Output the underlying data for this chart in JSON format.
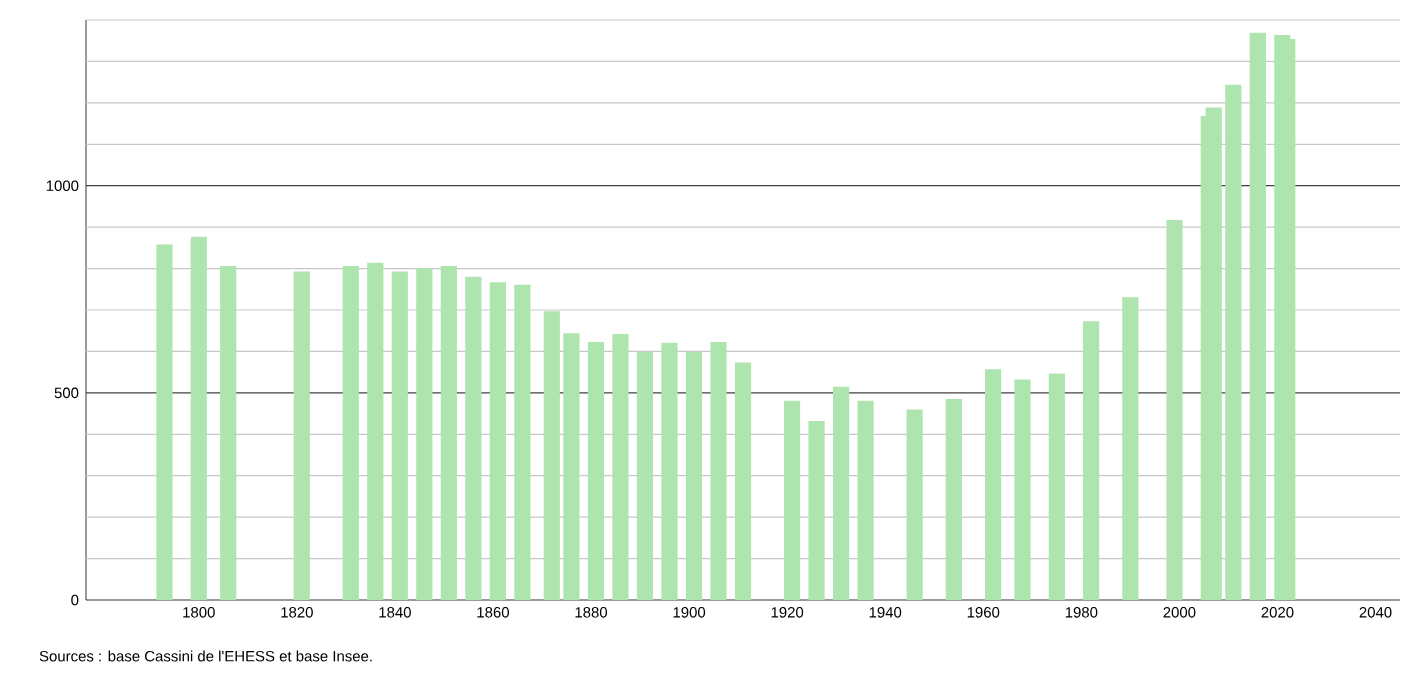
{
  "chart_data": {
    "type": "bar",
    "color": "#aee4ae",
    "x": [
      1793,
      1800,
      1806,
      1821,
      1831,
      1836,
      1841,
      1846,
      1851,
      1856,
      1861,
      1866,
      1872,
      1876,
      1881,
      1886,
      1891,
      1896,
      1901,
      1906,
      1911,
      1921,
      1926,
      1931,
      1936,
      1946,
      1954,
      1962,
      1968,
      1975,
      1982,
      1990,
      1999,
      2006,
      2007,
      2011,
      2016,
      2021,
      2022
    ],
    "values": [
      858,
      877,
      806,
      793,
      806,
      814,
      793,
      801,
      806,
      780,
      767,
      761,
      697,
      644,
      623,
      642,
      599,
      621,
      599,
      623,
      573,
      481,
      432,
      515,
      481,
      460,
      485,
      557,
      532,
      547,
      673,
      731,
      917,
      1168,
      1189,
      1244,
      1369,
      1364,
      1354
    ],
    "xlim": [
      1777,
      2045
    ],
    "ylim": [
      0,
      1400
    ],
    "xticks": [
      1800,
      1820,
      1840,
      1860,
      1880,
      1900,
      1920,
      1940,
      1960,
      1980,
      2000,
      2020,
      2040
    ],
    "yticks": [
      0,
      {
        "value": 100,
        "label": null
      },
      {
        "value": 200,
        "label": null
      },
      {
        "value": 300,
        "label": null
      },
      {
        "value": 400,
        "label": null
      },
      500,
      {
        "value": 600,
        "label": null
      },
      {
        "value": 700,
        "label": null
      },
      {
        "value": 800,
        "label": null
      },
      {
        "value": 900,
        "label": null
      },
      1000,
      {
        "value": 1100,
        "label": null
      },
      {
        "value": 1200,
        "label": null
      },
      {
        "value": 1300,
        "label": null
      },
      {
        "value": 1400,
        "label": null
      }
    ],
    "grid": "y",
    "annotations": [
      "Sources : base Cassini de l'EHESS et base Insee."
    ]
  }
}
